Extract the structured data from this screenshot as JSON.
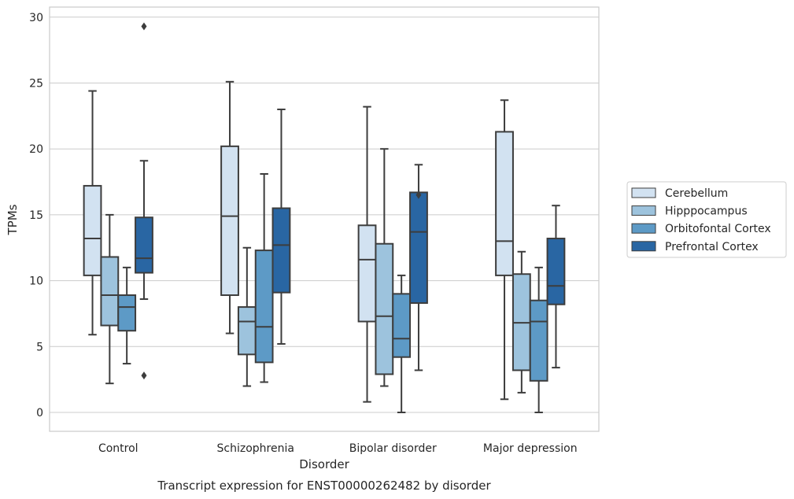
{
  "chart_data": {
    "type": "box",
    "title": "Transcript expression for ENST00000262482 by disorder",
    "xlabel": "Disorder",
    "ylabel": "TPMs",
    "ylim": [
      -1.4,
      30.7
    ],
    "yticks": [
      0,
      5,
      10,
      15,
      20,
      25,
      30
    ],
    "grid": true,
    "legend_position": "right",
    "categories": [
      "Control",
      "Schizophrenia",
      "Bipolar disorder",
      "Major depression"
    ],
    "series": [
      {
        "name": "Cerebellum",
        "color": "#d2e2f1",
        "boxes": [
          {
            "whislo": 5.9,
            "q1": 10.4,
            "med": 13.2,
            "q3": 17.2,
            "whishi": 24.4,
            "fliers": []
          },
          {
            "whislo": 6.0,
            "q1": 8.9,
            "med": 14.9,
            "q3": 20.2,
            "whishi": 25.1,
            "fliers": []
          },
          {
            "whislo": 0.8,
            "q1": 6.9,
            "med": 11.6,
            "q3": 14.2,
            "whishi": 23.2,
            "fliers": []
          },
          {
            "whislo": 1.0,
            "q1": 10.4,
            "med": 13.0,
            "q3": 21.3,
            "whishi": 23.7,
            "fliers": []
          }
        ]
      },
      {
        "name": "Hipppocampus",
        "color": "#9dc3dd",
        "boxes": [
          {
            "whislo": 2.2,
            "q1": 6.6,
            "med": 8.9,
            "q3": 11.8,
            "whishi": 15.0,
            "fliers": []
          },
          {
            "whislo": 2.0,
            "q1": 4.4,
            "med": 6.9,
            "q3": 8.0,
            "whishi": 12.5,
            "fliers": []
          },
          {
            "whislo": 2.0,
            "q1": 2.9,
            "med": 7.3,
            "q3": 12.8,
            "whishi": 20.0,
            "fliers": []
          },
          {
            "whislo": 1.5,
            "q1": 3.2,
            "med": 6.8,
            "q3": 10.5,
            "whishi": 12.2,
            "fliers": []
          }
        ]
      },
      {
        "name": "Orbitofontal Cortex",
        "color": "#5d9ac6",
        "boxes": [
          {
            "whislo": 3.7,
            "q1": 6.2,
            "med": 8.0,
            "q3": 8.9,
            "whishi": 11.0,
            "fliers": []
          },
          {
            "whislo": 2.3,
            "q1": 3.8,
            "med": 6.5,
            "q3": 12.3,
            "whishi": 18.1,
            "fliers": []
          },
          {
            "whislo": 0.0,
            "q1": 4.2,
            "med": 5.6,
            "q3": 9.0,
            "whishi": 10.4,
            "fliers": []
          },
          {
            "whislo": 0.0,
            "q1": 2.4,
            "med": 6.9,
            "q3": 8.5,
            "whishi": 11.0,
            "fliers": []
          }
        ]
      },
      {
        "name": "Prefrontal Cortex",
        "color": "#2966a3",
        "boxes": [
          {
            "whislo": 8.6,
            "q1": 10.6,
            "med": 11.7,
            "q3": 14.8,
            "whishi": 19.1,
            "fliers": [
              29.3,
              2.8
            ]
          },
          {
            "whislo": 5.2,
            "q1": 9.1,
            "med": 12.7,
            "q3": 15.5,
            "whishi": 23.0,
            "fliers": []
          },
          {
            "whislo": 3.2,
            "q1": 8.3,
            "med": 13.7,
            "q3": 16.7,
            "whishi": 18.8,
            "fliers": [
              16.5
            ]
          },
          {
            "whislo": 3.4,
            "q1": 8.2,
            "med": 9.6,
            "q3": 13.2,
            "whishi": 15.7,
            "fliers": []
          }
        ]
      }
    ]
  }
}
